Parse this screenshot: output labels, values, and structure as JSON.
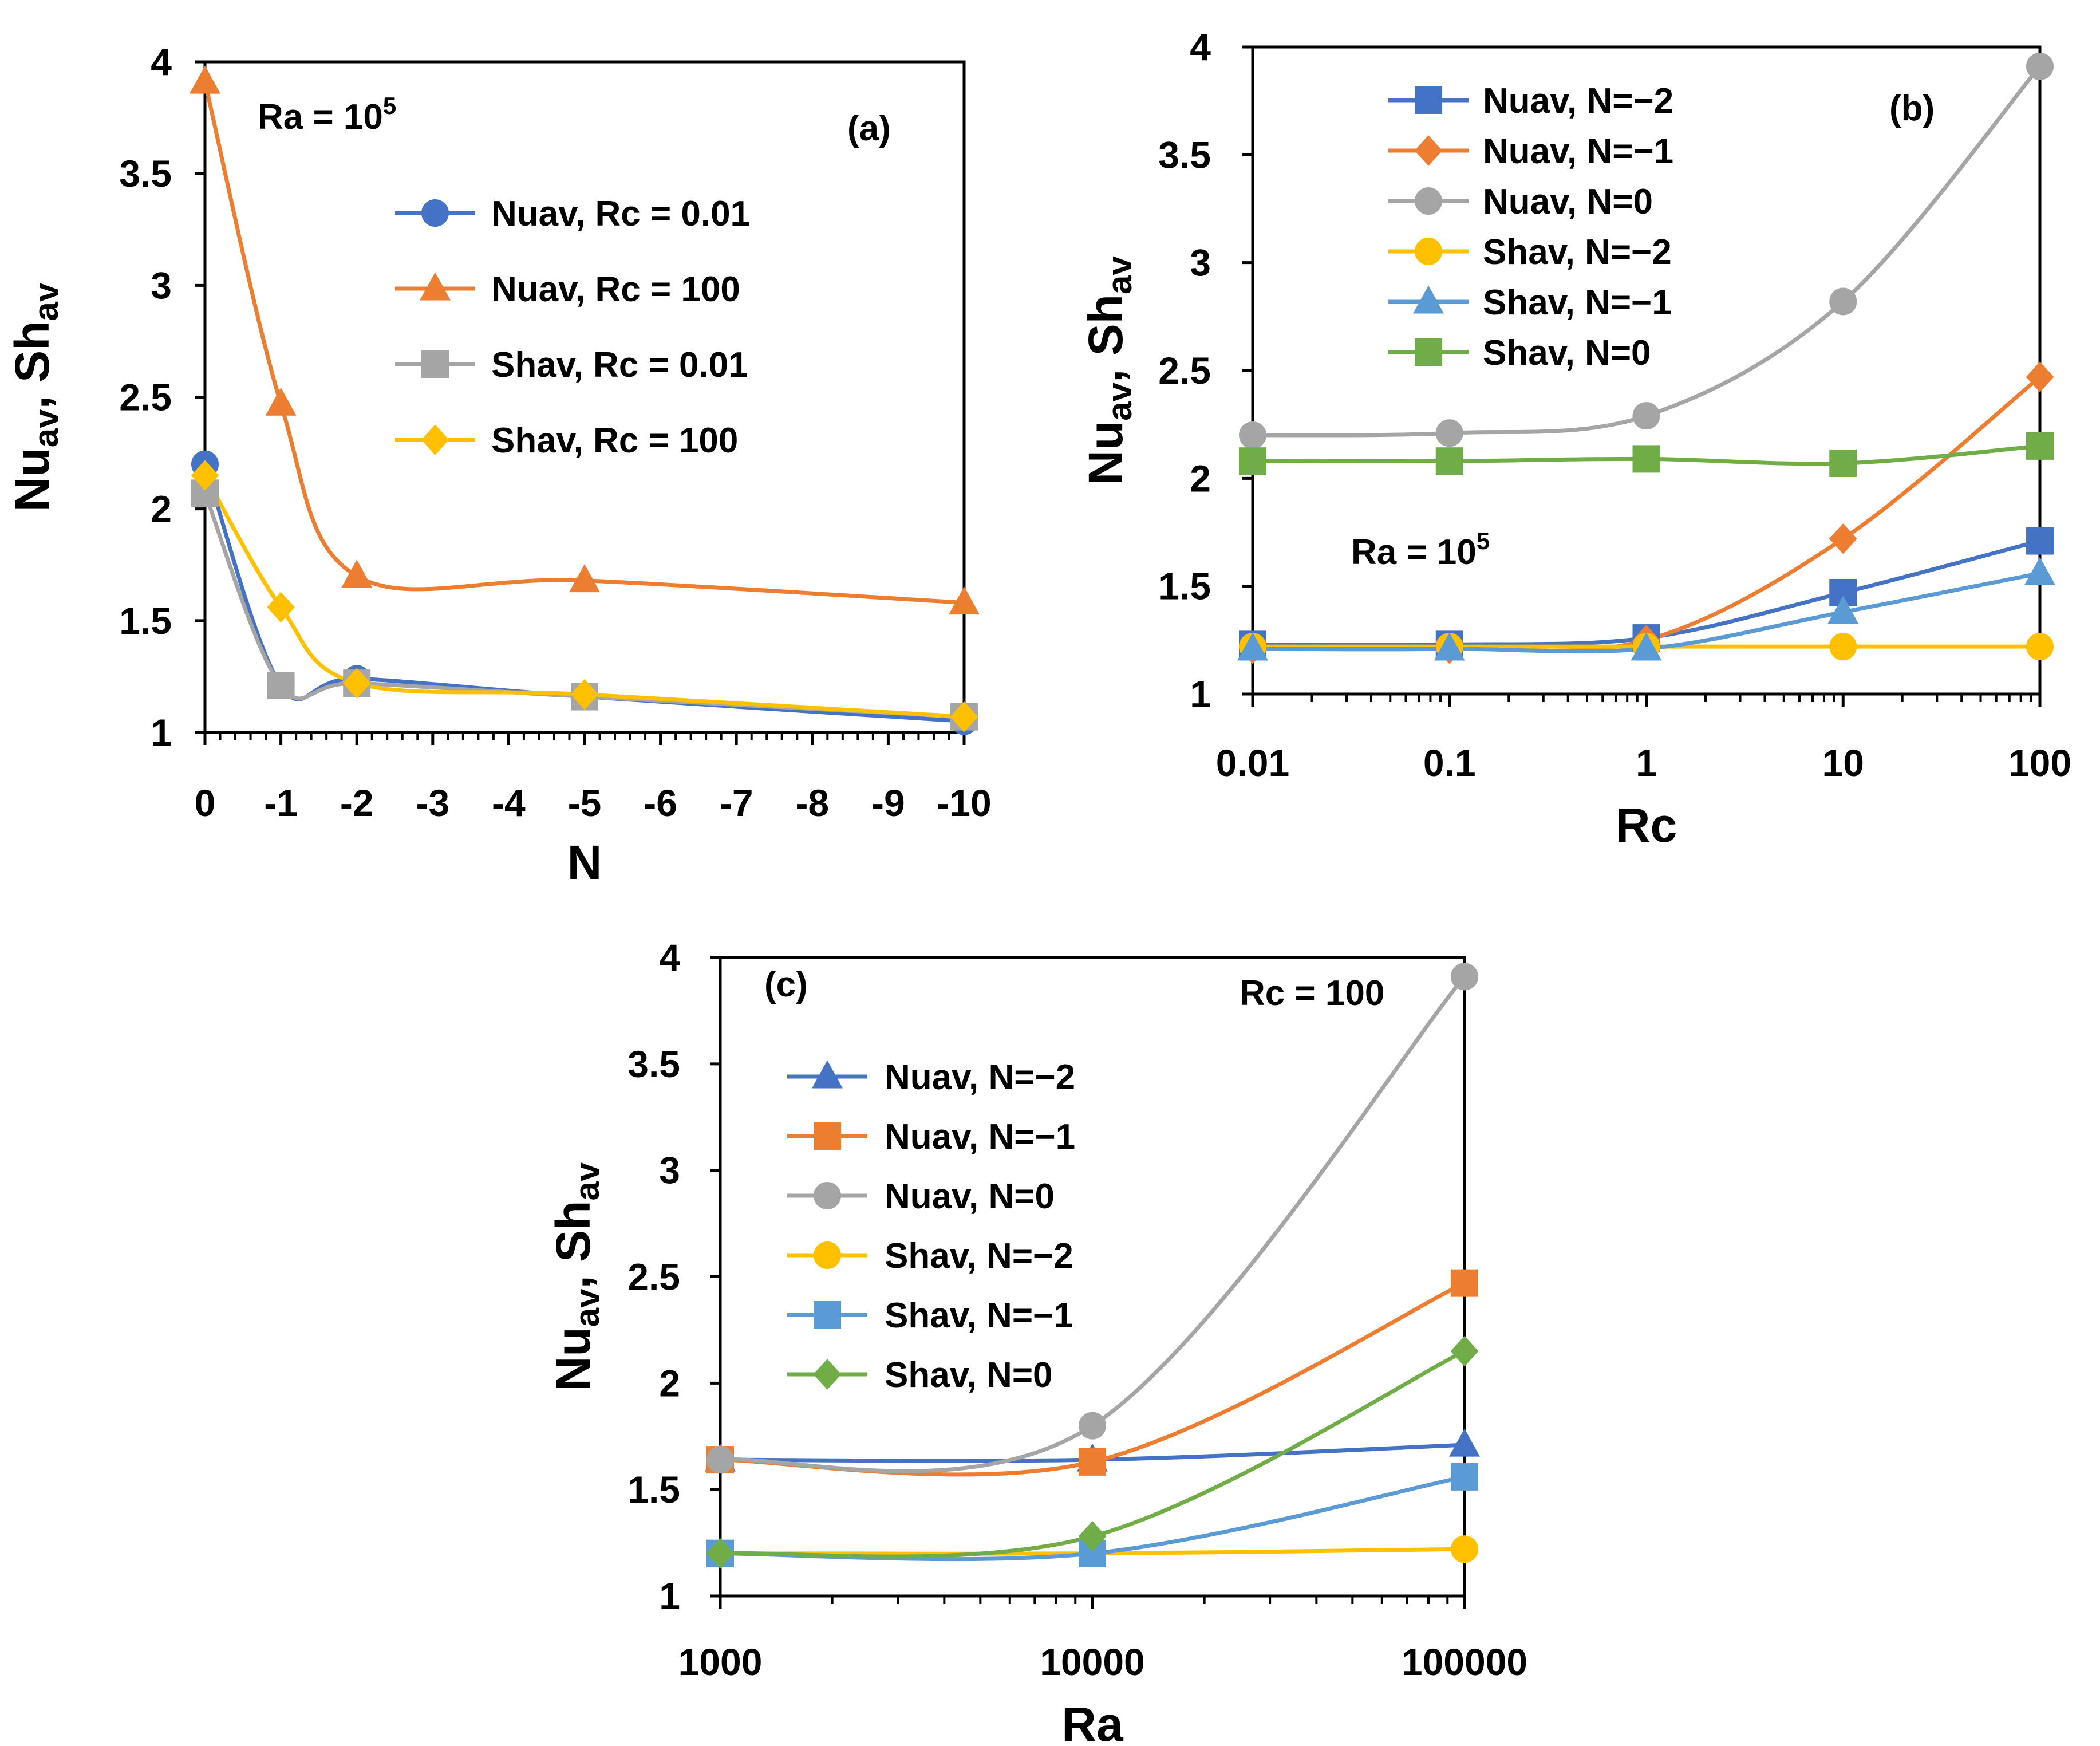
{
  "chart_data": [
    {
      "id": "a",
      "type": "line",
      "panel_label": "(a)",
      "annotation": {
        "base": "Ra = 10",
        "exp": "5"
      },
      "xlabel": "N",
      "ylabel": {
        "a": "Nu",
        "a_sub": "av",
        "sep": ", Sh",
        "b_sub": "av"
      },
      "x_scale": "linear",
      "xlim": [
        0,
        -10
      ],
      "ylim": [
        1,
        4
      ],
      "x_ticks": [
        0,
        -1,
        -2,
        -3,
        -4,
        -5,
        -6,
        -7,
        -8,
        -9,
        -10
      ],
      "x_tick_labels": [
        "0",
        "-1",
        "-2",
        "-3",
        "-4",
        "-5",
        "-6",
        "-7",
        "-8",
        "-9",
        "-10"
      ],
      "y_ticks": [
        1,
        1.5,
        2,
        2.5,
        3,
        3.5,
        4
      ],
      "y_tick_labels": [
        "1",
        "1.5",
        "2",
        "2.5",
        "3",
        "3.5",
        "4"
      ],
      "x_minor_step": 0.2,
      "legend_position": "center-right",
      "series": [
        {
          "name": "Nuav, Rc = 0.01",
          "color": "#4472C4",
          "marker": "circle",
          "x": [
            0,
            -1,
            -2,
            -5,
            -10
          ],
          "y": [
            2.2,
            1.21,
            1.24,
            1.16,
            1.05
          ]
        },
        {
          "name": "Nuav, Rc = 100",
          "color": "#ED7D31",
          "marker": "triangle",
          "x": [
            0,
            -1,
            -2,
            -5,
            -10
          ],
          "y": [
            3.91,
            2.47,
            1.7,
            1.68,
            1.58
          ]
        },
        {
          "name": "Shav, Rc = 0.01",
          "color": "#A5A5A5",
          "marker": "square",
          "x": [
            0,
            -1,
            -2,
            -5,
            -10
          ],
          "y": [
            2.07,
            1.21,
            1.22,
            1.16,
            1.07
          ]
        },
        {
          "name": "Shav, Rc = 100",
          "color": "#FFC000",
          "marker": "diamond",
          "x": [
            0,
            -1,
            -2,
            -5,
            -10
          ],
          "y": [
            2.15,
            1.56,
            1.22,
            1.17,
            1.07
          ]
        }
      ]
    },
    {
      "id": "b",
      "type": "line",
      "panel_label": "(b)",
      "annotation": {
        "base": "Ra = 10",
        "exp": "5"
      },
      "xlabel": "Rc",
      "ylabel": {
        "a": "Nu",
        "a_sub": "av",
        "sep": ", Sh",
        "b_sub": "av"
      },
      "x_scale": "log",
      "xlim": [
        0.01,
        100
      ],
      "ylim": [
        1,
        4
      ],
      "x_ticks": [
        0.01,
        0.1,
        1,
        10,
        100
      ],
      "x_tick_labels": [
        "0.01",
        "0.1",
        "1",
        "10",
        "100"
      ],
      "y_ticks": [
        1,
        1.5,
        2,
        2.5,
        3,
        3.5,
        4
      ],
      "y_tick_labels": [
        "1",
        "1.5",
        "2",
        "2.5",
        "3",
        "3.5",
        "4"
      ],
      "legend_position": "top-left",
      "series": [
        {
          "name": "Nuav, N=−2",
          "color": "#4472C4",
          "marker": "square",
          "x": [
            0.01,
            0.1,
            1,
            10,
            100
          ],
          "y": [
            1.23,
            1.23,
            1.26,
            1.47,
            1.71
          ]
        },
        {
          "name": "Nuav, N=−1",
          "color": "#ED7D31",
          "marker": "diamond",
          "x": [
            0.01,
            0.1,
            1,
            10,
            100
          ],
          "y": [
            1.21,
            1.21,
            1.25,
            1.72,
            2.47
          ]
        },
        {
          "name": "Nuav, N=0",
          "color": "#A5A5A5",
          "marker": "circle",
          "x": [
            0.01,
            0.1,
            1,
            10,
            100
          ],
          "y": [
            2.2,
            2.21,
            2.29,
            2.82,
            3.91
          ]
        },
        {
          "name": "Shav, N=−2",
          "color": "#FFC000",
          "marker": "circle",
          "x": [
            0.01,
            0.1,
            1,
            10,
            100
          ],
          "y": [
            1.22,
            1.22,
            1.22,
            1.22,
            1.22
          ]
        },
        {
          "name": "Shav, N=−1",
          "color": "#5B9BD5",
          "marker": "triangle",
          "x": [
            0.01,
            0.1,
            1,
            10,
            100
          ],
          "y": [
            1.21,
            1.21,
            1.21,
            1.38,
            1.56
          ]
        },
        {
          "name": "Shav, N=0",
          "color": "#70AD47",
          "marker": "square",
          "x": [
            0.01,
            0.1,
            1,
            10,
            100
          ],
          "y": [
            2.08,
            2.08,
            2.09,
            2.07,
            2.15
          ]
        }
      ]
    },
    {
      "id": "c",
      "type": "line",
      "panel_label": "(c)",
      "annotation": {
        "base": "Rc = 100",
        "exp": ""
      },
      "xlabel": "Ra",
      "ylabel": {
        "a": "Nu",
        "a_sub": "av",
        "sep": ", Sh",
        "b_sub": "av"
      },
      "x_scale": "log",
      "xlim": [
        1000,
        100000
      ],
      "ylim": [
        1,
        4
      ],
      "x_ticks": [
        1000,
        10000,
        100000
      ],
      "x_tick_labels": [
        "1000",
        "10000",
        "100000"
      ],
      "y_ticks": [
        1,
        1.5,
        2,
        2.5,
        3,
        3.5,
        4
      ],
      "y_tick_labels": [
        "1",
        "1.5",
        "2",
        "2.5",
        "3",
        "3.5",
        "4"
      ],
      "legend_position": "center-left",
      "series": [
        {
          "name": "Nuav, N=−2",
          "color": "#4472C4",
          "marker": "triangle",
          "x": [
            1000,
            10000,
            100000
          ],
          "y": [
            1.64,
            1.64,
            1.71
          ]
        },
        {
          "name": "Nuav, N=−1",
          "color": "#ED7D31",
          "marker": "square",
          "x": [
            1000,
            10000,
            100000
          ],
          "y": [
            1.64,
            1.63,
            2.47
          ]
        },
        {
          "name": "Nuav, N=0",
          "color": "#A5A5A5",
          "marker": "circle",
          "x": [
            1000,
            10000,
            100000
          ],
          "y": [
            1.64,
            1.8,
            3.91
          ]
        },
        {
          "name": "Shav, N=−2",
          "color": "#FFC000",
          "marker": "circle",
          "x": [
            1000,
            10000,
            100000
          ],
          "y": [
            1.2,
            1.2,
            1.22
          ]
        },
        {
          "name": "Shav, N=−1",
          "color": "#5B9BD5",
          "marker": "square",
          "x": [
            1000,
            10000,
            100000
          ],
          "y": [
            1.2,
            1.2,
            1.56
          ]
        },
        {
          "name": "Shav, N=0",
          "color": "#70AD47",
          "marker": "diamond",
          "x": [
            1000,
            10000,
            100000
          ],
          "y": [
            1.2,
            1.28,
            2.15
          ]
        }
      ]
    }
  ]
}
